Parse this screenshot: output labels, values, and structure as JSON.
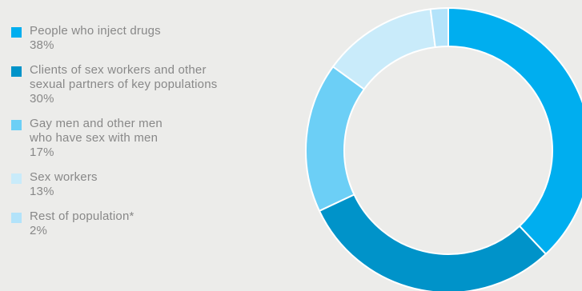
{
  "chart_data": {
    "type": "pie",
    "title": "",
    "series": [
      {
        "name": "People who inject drugs",
        "label": "People who inject drugs",
        "value_label": "38%",
        "value": 38,
        "color": "#00aeef"
      },
      {
        "name": "Clients of sex workers and other sexual partners of key populations",
        "label": "Clients of sex workers and other\nsexual partners of key populations",
        "value_label": "30%",
        "value": 30,
        "color": "#0093c9"
      },
      {
        "name": "Gay men and other men who have sex with men",
        "label": "Gay men and other men\nwho have sex with men",
        "value_label": "17%",
        "value": 17,
        "color": "#6ccff6"
      },
      {
        "name": "Sex workers",
        "label": "Sex workers",
        "value_label": "13%",
        "value": 13,
        "color": "#c9ebfa"
      },
      {
        "name": "Rest of population*",
        "label": "Rest of population*",
        "value_label": "2%",
        "value": 2,
        "color": "#b3e3fa"
      }
    ],
    "donut": true,
    "start_angle_deg": 0,
    "direction": "clockwise",
    "legend_position": "left"
  }
}
